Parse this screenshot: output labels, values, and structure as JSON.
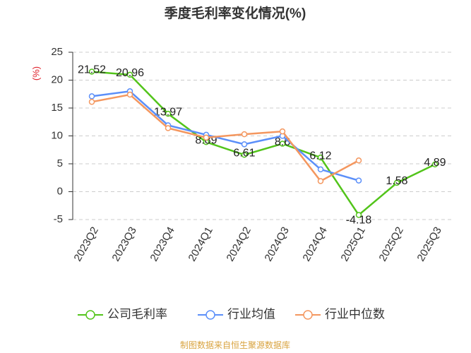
{
  "chart_data": {
    "type": "line",
    "title": "季度毛利率变化情况(%)",
    "y_label": "(%)",
    "categories": [
      "2023Q2",
      "2023Q3",
      "2023Q4",
      "2024Q1",
      "2024Q2",
      "2024Q3",
      "2024Q4",
      "2025Q1",
      "2025Q2",
      "2025Q3"
    ],
    "series": [
      {
        "name": "公司毛利率",
        "color": "#52c41a",
        "values": [
          21.52,
          20.96,
          13.97,
          8.89,
          6.61,
          8.6,
          6.12,
          -4.18,
          1.58,
          4.89
        ],
        "show_labels": true
      },
      {
        "name": "行业均值",
        "color": "#5b8ff9",
        "values": [
          17.1,
          18.0,
          11.9,
          10.2,
          8.5,
          10.0,
          4.0,
          2.0,
          null,
          null
        ]
      },
      {
        "name": "行业中位数",
        "color": "#f4975f",
        "values": [
          16.1,
          17.4,
          11.4,
          9.7,
          10.3,
          10.8,
          1.9,
          5.6,
          null,
          null
        ]
      }
    ],
    "ylim": [
      -5,
      25
    ],
    "yticks": [
      -5,
      0,
      5,
      10,
      15,
      20,
      25
    ],
    "grid": true,
    "source": "制图数据来自恒生聚源数据库"
  }
}
